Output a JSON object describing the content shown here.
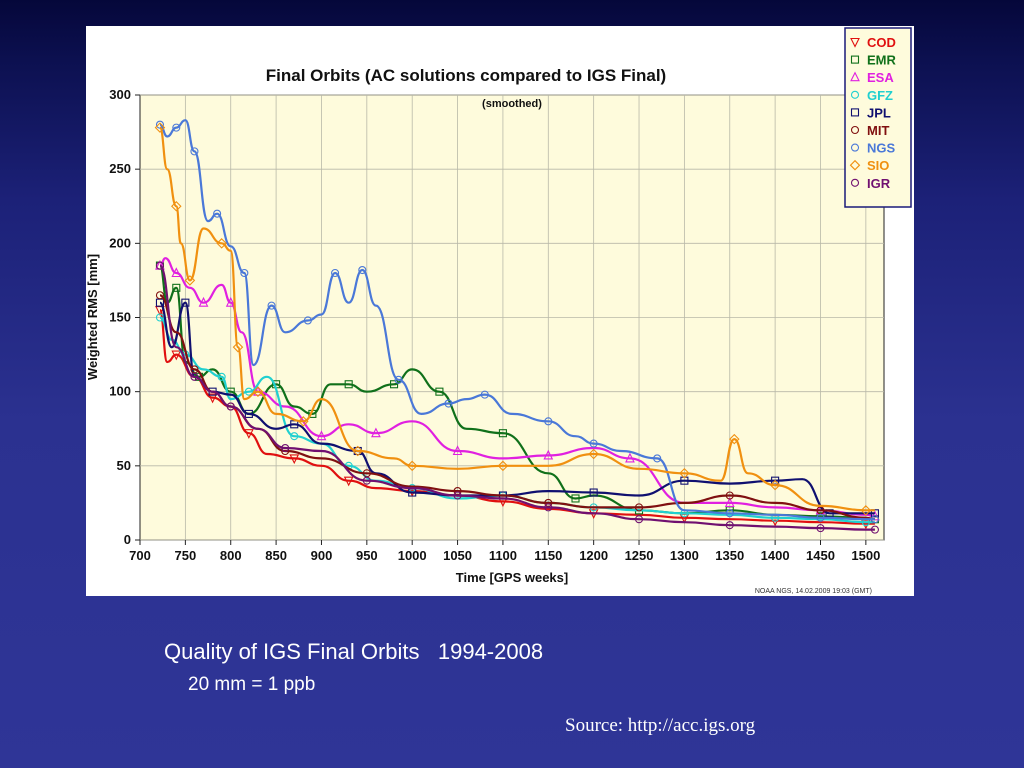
{
  "caption": {
    "title": "Quality of IGS Final Orbits   1994-2008",
    "subtitle": "20 mm = 1 ppb",
    "source": "Source: http://acc.igs.org"
  },
  "chart_data": {
    "type": "line",
    "title": "Final Orbits (AC solutions compared to IGS Final)",
    "subtitle": "(smoothed)",
    "xlabel": "Time [GPS weeks]",
    "ylabel": "Weighted RMS [mm]",
    "xlim": [
      700,
      1520
    ],
    "ylim": [
      0,
      300
    ],
    "xticks": [
      700,
      750,
      800,
      850,
      900,
      950,
      1000,
      1050,
      1100,
      1150,
      1200,
      1250,
      1300,
      1350,
      1400,
      1450,
      1500
    ],
    "yticks": [
      0,
      50,
      100,
      150,
      200,
      250,
      300
    ],
    "grid": true,
    "legend_position": "top-right",
    "footer": "NOAA NGS, 14.02.2009 19:03 (GMT)",
    "series": [
      {
        "name": "COD",
        "color": "#e01010",
        "marker": "triangle-down",
        "x": [
          722,
          730,
          740,
          760,
          780,
          800,
          820,
          840,
          870,
          900,
          930,
          960,
          1000,
          1050,
          1100,
          1150,
          1200,
          1250,
          1300,
          1350,
          1400,
          1450,
          1500,
          1510
        ],
        "y": [
          155,
          120,
          125,
          110,
          96,
          90,
          72,
          58,
          55,
          50,
          40,
          35,
          33,
          30,
          26,
          21,
          18,
          17,
          15,
          14,
          13,
          12,
          11,
          11
        ]
      },
      {
        "name": "EMR",
        "color": "#10701a",
        "marker": "square",
        "x": [
          722,
          730,
          740,
          750,
          765,
          780,
          800,
          820,
          850,
          870,
          890,
          910,
          930,
          950,
          980,
          1000,
          1030,
          1060,
          1100,
          1150,
          1180,
          1200,
          1250,
          1300,
          1350,
          1400,
          1450,
          1500,
          1510
        ],
        "y": [
          185,
          160,
          170,
          120,
          110,
          115,
          100,
          85,
          105,
          90,
          85,
          105,
          105,
          100,
          105,
          115,
          100,
          75,
          72,
          45,
          28,
          30,
          20,
          18,
          20,
          17,
          16,
          15,
          14
        ]
      },
      {
        "name": "ESA",
        "color": "#e020e0",
        "marker": "triangle-up",
        "x": [
          722,
          728,
          740,
          755,
          770,
          790,
          800,
          812,
          830,
          860,
          900,
          930,
          960,
          1000,
          1050,
          1100,
          1150,
          1200,
          1240,
          1300,
          1350,
          1400,
          1450,
          1500,
          1510
        ],
        "y": [
          185,
          190,
          180,
          170,
          160,
          172,
          160,
          140,
          100,
          90,
          70,
          78,
          72,
          80,
          60,
          55,
          57,
          62,
          55,
          25,
          25,
          22,
          20,
          17,
          16
        ]
      },
      {
        "name": "GFZ",
        "color": "#20d0d0",
        "marker": "circle",
        "x": [
          722,
          735,
          750,
          770,
          790,
          800,
          820,
          840,
          870,
          900,
          930,
          960,
          1000,
          1050,
          1100,
          1150,
          1200,
          1250,
          1300,
          1350,
          1400,
          1450,
          1500,
          1510
        ],
        "y": [
          150,
          135,
          125,
          115,
          110,
          95,
          100,
          110,
          70,
          65,
          50,
          40,
          35,
          28,
          30,
          25,
          22,
          20,
          18,
          17,
          15,
          14,
          12,
          12
        ]
      },
      {
        "name": "JPL",
        "color": "#101070",
        "marker": "square",
        "x": [
          722,
          735,
          750,
          760,
          780,
          800,
          820,
          850,
          870,
          900,
          940,
          960,
          1000,
          1050,
          1100,
          1150,
          1200,
          1250,
          1300,
          1350,
          1400,
          1430,
          1460,
          1500,
          1510
        ],
        "y": [
          160,
          130,
          160,
          110,
          100,
          98,
          85,
          75,
          78,
          65,
          60,
          45,
          32,
          30,
          30,
          33,
          32,
          30,
          40,
          38,
          40,
          41,
          18,
          18,
          18
        ]
      },
      {
        "name": "MIT",
        "color": "#801010",
        "marker": "circle",
        "x": [
          722,
          740,
          760,
          780,
          800,
          830,
          860,
          900,
          950,
          1000,
          1050,
          1100,
          1150,
          1200,
          1250,
          1300,
          1350,
          1400,
          1450,
          1500,
          1510
        ],
        "y": [
          165,
          140,
          115,
          100,
          90,
          75,
          60,
          55,
          45,
          36,
          33,
          30,
          25,
          22,
          22,
          25,
          30,
          25,
          20,
          15,
          14
        ]
      },
      {
        "name": "NGS",
        "color": "#4a78d8",
        "marker": "circle",
        "x": [
          722,
          730,
          740,
          750,
          760,
          775,
          785,
          800,
          815,
          825,
          845,
          860,
          885,
          900,
          915,
          930,
          945,
          960,
          985,
          1010,
          1040,
          1060,
          1080,
          1110,
          1150,
          1180,
          1200,
          1230,
          1270,
          1300,
          1350,
          1400,
          1450,
          1500,
          1510
        ],
        "y": [
          280,
          272,
          278,
          283,
          262,
          215,
          220,
          198,
          180,
          118,
          158,
          140,
          148,
          152,
          180,
          160,
          182,
          158,
          108,
          85,
          92,
          95,
          98,
          85,
          80,
          70,
          65,
          60,
          55,
          20,
          18,
          17,
          15,
          14,
          14
        ]
      },
      {
        "name": "SIO",
        "color": "#f09010",
        "marker": "diamond",
        "x": [
          722,
          730,
          740,
          745,
          755,
          770,
          790,
          800,
          808,
          815,
          830,
          850,
          880,
          900,
          940,
          980,
          1000,
          1050,
          1100,
          1150,
          1200,
          1250,
          1300,
          1340,
          1355,
          1370,
          1400,
          1450,
          1500,
          1510
        ],
        "y": [
          278,
          250,
          225,
          200,
          175,
          210,
          200,
          195,
          130,
          95,
          100,
          85,
          80,
          95,
          60,
          55,
          50,
          48,
          50,
          50,
          58,
          48,
          45,
          40,
          68,
          45,
          37,
          23,
          20,
          20
        ]
      },
      {
        "name": "IGR",
        "color": "#701070",
        "marker": "circle",
        "x": [
          722,
          740,
          760,
          780,
          800,
          830,
          860,
          900,
          950,
          1000,
          1050,
          1100,
          1150,
          1200,
          1250,
          1300,
          1350,
          1400,
          1450,
          1500,
          1510
        ],
        "y": [
          185,
          130,
          110,
          100,
          90,
          75,
          62,
          60,
          40,
          35,
          30,
          28,
          22,
          18,
          14,
          12,
          10,
          9,
          8,
          7,
          7
        ]
      }
    ]
  }
}
